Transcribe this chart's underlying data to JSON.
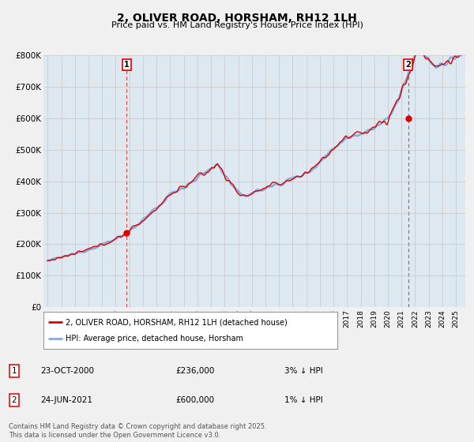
{
  "title": "2, OLIVER ROAD, HORSHAM, RH12 1LH",
  "subtitle": "Price paid vs. HM Land Registry's House Price Index (HPI)",
  "ylim": [
    0,
    800000
  ],
  "yticks": [
    0,
    100000,
    200000,
    300000,
    400000,
    500000,
    600000,
    700000,
    800000
  ],
  "ytick_labels": [
    "£0",
    "£100K",
    "£200K",
    "£300K",
    "£400K",
    "£500K",
    "£600K",
    "£700K",
    "£800K"
  ],
  "xlim_start": 1994.7,
  "xlim_end": 2025.7,
  "legend_line1": "2, OLIVER ROAD, HORSHAM, RH12 1LH (detached house)",
  "legend_line2": "HPI: Average price, detached house, Horsham",
  "red_color": "#dd0000",
  "blue_color": "#88aadd",
  "dashed_color": "#dd0000",
  "marker1_date": "23-OCT-2000",
  "marker1_price": "£236,000",
  "marker1_hpi": "3% ↓ HPI",
  "marker2_date": "24-JUN-2021",
  "marker2_price": "£600,000",
  "marker2_hpi": "1% ↓ HPI",
  "marker1_x": 2000.81,
  "marker1_y": 236000,
  "marker2_x": 2021.48,
  "marker2_y": 600000,
  "footnote": "Contains HM Land Registry data © Crown copyright and database right 2025.\nThis data is licensed under the Open Government Licence v3.0.",
  "bg_color": "#f0f0f0",
  "plot_bg_color": "#dde8f0"
}
